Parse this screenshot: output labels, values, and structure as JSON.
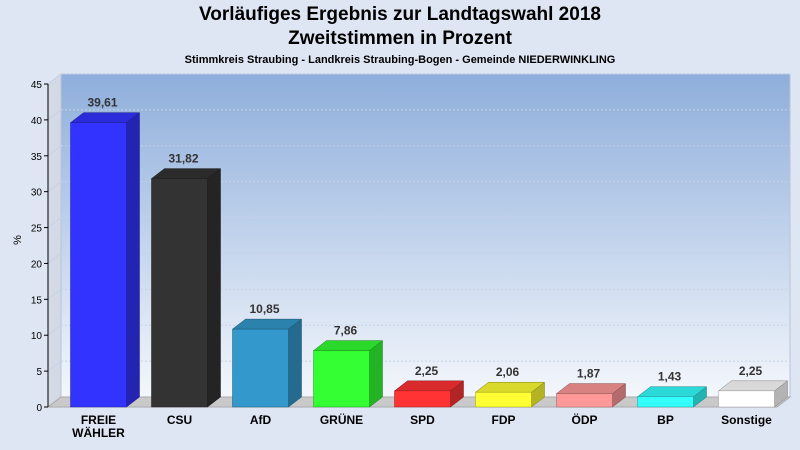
{
  "header": {
    "title": "Vorläufiges Ergebnis zur Landtagswahl 2018",
    "subtitle": "Zweitstimmen in Prozent",
    "caption": "Stimmkreis Straubing - Landkreis Straubing-Bogen - Gemeinde NIEDERWINKLING"
  },
  "chart_data": {
    "type": "bar",
    "title": "Vorläufiges Ergebnis zur Landtagswahl 2018",
    "subtitle": "Zweitstimmen in Prozent",
    "ylabel": "%",
    "xlabel": "",
    "ylim": [
      0,
      45
    ],
    "yticks": [
      0,
      5,
      10,
      15,
      20,
      25,
      30,
      35,
      40,
      45
    ],
    "grid": true,
    "categories": [
      "FREIE WÄHLER",
      "CSU",
      "AfD",
      "GRÜNE",
      "SPD",
      "FDP",
      "ÖDP",
      "BP",
      "Sonstige"
    ],
    "category_lines": [
      [
        "FREIE",
        "WÄHLER"
      ],
      [
        "CSU"
      ],
      [
        "AfD"
      ],
      [
        "GRÜNE"
      ],
      [
        "SPD"
      ],
      [
        "FDP"
      ],
      [
        "ÖDP"
      ],
      [
        "BP"
      ],
      [
        "Sonstige"
      ]
    ],
    "values": [
      39.61,
      31.82,
      10.85,
      7.86,
      2.25,
      2.06,
      1.87,
      1.43,
      2.25
    ],
    "value_labels": [
      "39,61",
      "31,82",
      "10,85",
      "7,86",
      "2,25",
      "2,06",
      "1,87",
      "1,43",
      "2,25"
    ],
    "colors": [
      "#3333ff",
      "#333333",
      "#3399cc",
      "#33ff33",
      "#ff3333",
      "#ffff33",
      "#ff9999",
      "#33ffff",
      "#ffffff"
    ]
  }
}
